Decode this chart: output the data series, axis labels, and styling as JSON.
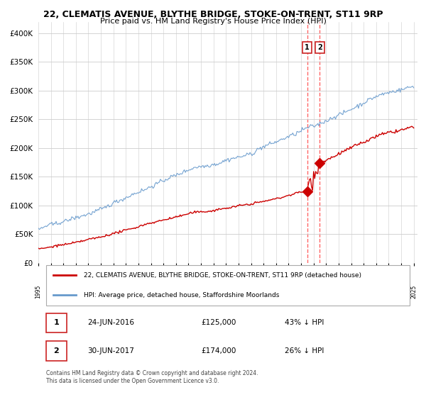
{
  "title": "22, CLEMATIS AVENUE, BLYTHE BRIDGE, STOKE-ON-TRENT, ST11 9RP",
  "subtitle": "Price paid vs. HM Land Registry's House Price Index (HPI)",
  "legend_label_red": "22, CLEMATIS AVENUE, BLYTHE BRIDGE, STOKE-ON-TRENT, ST11 9RP (detached house)",
  "legend_label_blue": "HPI: Average price, detached house, Staffordshire Moorlands",
  "transaction1_date": "24-JUN-2016",
  "transaction1_price": 125000,
  "transaction1_pct": "43% ↓ HPI",
  "transaction2_date": "30-JUN-2017",
  "transaction2_price": 174000,
  "transaction2_pct": "26% ↓ HPI",
  "footer": "Contains HM Land Registry data © Crown copyright and database right 2024.\nThis data is licensed under the Open Government Licence v3.0.",
  "red_color": "#cc0000",
  "blue_color": "#6699cc",
  "dashed_line_color": "#ff6666",
  "background_color": "#ffffff",
  "grid_color": "#cccccc",
  "ylim": [
    0,
    420000
  ],
  "yticks": [
    0,
    50000,
    100000,
    150000,
    200000,
    250000,
    300000,
    350000,
    400000
  ],
  "start_year": 1995,
  "end_year": 2025,
  "transaction1_year": 2016.48,
  "transaction2_year": 2017.49
}
